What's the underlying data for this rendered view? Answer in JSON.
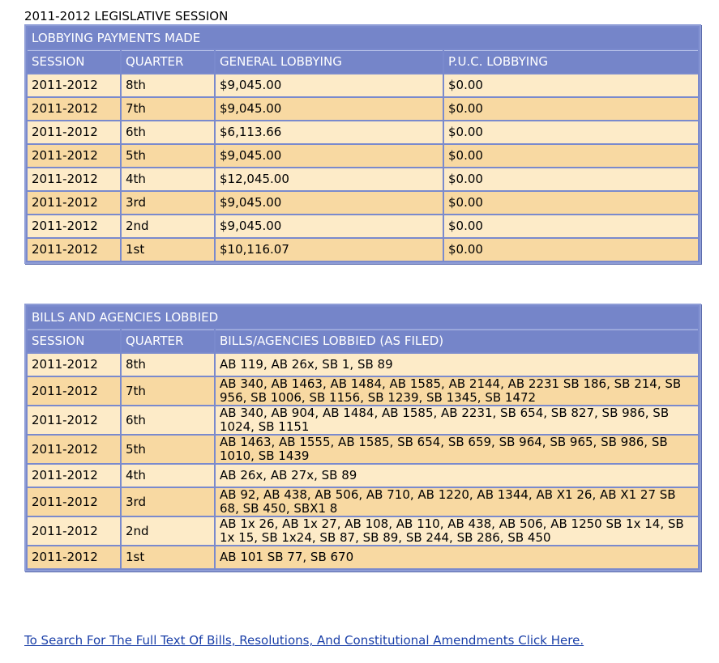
{
  "page_title": "2011-2012 LEGISLATIVE SESSION",
  "payments": {
    "title": "LOBBYING PAYMENTS MADE",
    "headers": [
      "SESSION",
      "QUARTER",
      "GENERAL LOBBYING",
      "P.U.C. LOBBYING"
    ],
    "rows": [
      [
        "2011-2012",
        "8th",
        "$9,045.00",
        "$0.00"
      ],
      [
        "2011-2012",
        "7th",
        "$9,045.00",
        "$0.00"
      ],
      [
        "2011-2012",
        "6th",
        "$6,113.66",
        "$0.00"
      ],
      [
        "2011-2012",
        "5th",
        "$9,045.00",
        "$0.00"
      ],
      [
        "2011-2012",
        "4th",
        "$12,045.00",
        "$0.00"
      ],
      [
        "2011-2012",
        "3rd",
        "$9,045.00",
        "$0.00"
      ],
      [
        "2011-2012",
        "2nd",
        "$9,045.00",
        "$0.00"
      ],
      [
        "2011-2012",
        "1st",
        "$10,116.07",
        "$0.00"
      ]
    ]
  },
  "bills": {
    "title": "BILLS AND AGENCIES LOBBIED",
    "headers": [
      "SESSION",
      "QUARTER",
      "BILLS/AGENCIES LOBBIED (AS FILED)"
    ],
    "rows": [
      [
        "2011-2012",
        "8th",
        "AB 119, AB 26x, SB 1, SB 89"
      ],
      [
        "2011-2012",
        "7th",
        "AB 340, AB 1463, AB 1484, AB 1585, AB 2144, AB 2231 SB 186, SB 214, SB 956, SB 1006, SB 1156, SB 1239, SB 1345, SB 1472"
      ],
      [
        "2011-2012",
        "6th",
        "AB 340, AB 904, AB 1484, AB 1585, AB 2231, SB 654, SB 827, SB 986, SB 1024, SB 1151"
      ],
      [
        "2011-2012",
        "5th",
        "AB 1463, AB 1555, AB 1585, SB 654, SB 659, SB 964, SB 965, SB 986, SB 1010, SB 1439"
      ],
      [
        "2011-2012",
        "4th",
        "AB 26x, AB 27x, SB 89"
      ],
      [
        "2011-2012",
        "3rd",
        "AB 92, AB 438, AB 506, AB 710, AB 1220, AB 1344, AB X1 26, AB X1 27 SB 68, SB 450, SBX1 8"
      ],
      [
        "2011-2012",
        "2nd",
        "AB 1x 26, AB 1x 27, AB 108, AB 110, AB 438, AB 506, AB 1250 SB 1x 14, SB 1x 15, SB 1x24, SB 87, SB 89, SB 244, SB 286, SB 450"
      ],
      [
        "2011-2012",
        "1st",
        "AB 101 SB 77, SB 670"
      ]
    ]
  },
  "link": "To Search For The Full Text Of Bills, Resolutions, And Constitutional Amendments Click Here."
}
